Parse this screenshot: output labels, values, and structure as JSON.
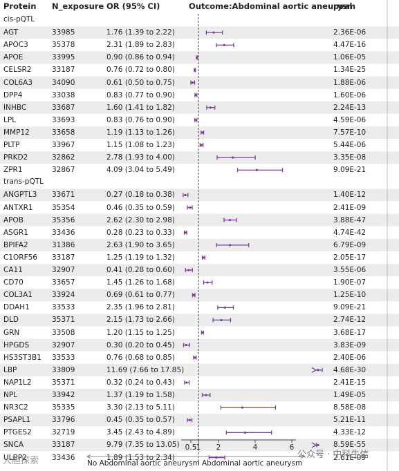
{
  "headers": {
    "protein": "Protein",
    "n_exposure": "N_exposure",
    "or_ci": "OR (95% CI)",
    "outcome": "Outcome:Abdominal aortic aneurysm",
    "pval": "pval"
  },
  "colors": {
    "marker": "#7b3f98",
    "stripe": "#ececec",
    "axis": "#444444"
  },
  "watermarks": {
    "left": "大胆探索",
    "right": "公众号 · 中科生信"
  },
  "direction_labels": {
    "left": "No Abdominal aortic aneurysm",
    "right": "Abdominal aortic aneurysm"
  },
  "chart_data": {
    "type": "forest",
    "x_ticks": [
      "0.5",
      "1",
      "2",
      "4",
      "6"
    ],
    "x_tick_values": [
      0.5,
      1,
      2,
      4,
      6
    ],
    "null_line": 1,
    "sections": [
      {
        "label": "cis-pQTL",
        "rows": [
          {
            "protein": "AGT",
            "n": "33985",
            "or_text": "1.76 (1.39 to 2.22)",
            "pval": "2.36E-06",
            "or": 1.76,
            "lo": 1.39,
            "hi": 2.22
          },
          {
            "protein": "APOC3",
            "n": "35378",
            "or_text": "2.31 (1.89 to 2.83)",
            "pval": "4.47E-16",
            "or": 2.31,
            "lo": 1.89,
            "hi": 2.83
          },
          {
            "protein": "APOE",
            "n": "33995",
            "or_text": "0.90 (0.86 to 0.94)",
            "pval": "1.06E-05",
            "or": 0.9,
            "lo": 0.86,
            "hi": 0.94
          },
          {
            "protein": "CELSR2",
            "n": "33187",
            "or_text": "0.76 (0.72 to 0.80)",
            "pval": "1.34E-25",
            "or": 0.76,
            "lo": 0.72,
            "hi": 0.8
          },
          {
            "protein": "COL6A3",
            "n": "34090",
            "or_text": "0.61 (0.50 to 0.75)",
            "pval": "1.88E-06",
            "or": 0.61,
            "lo": 0.5,
            "hi": 0.75
          },
          {
            "protein": "DPP4",
            "n": "33038",
            "or_text": "0.83 (0.77 to 0.90)",
            "pval": "1.60E-06",
            "or": 0.83,
            "lo": 0.77,
            "hi": 0.9
          },
          {
            "protein": "INHBC",
            "n": "33687",
            "or_text": "1.60 (1.41 to 1.82)",
            "pval": "2.24E-13",
            "or": 1.6,
            "lo": 1.41,
            "hi": 1.82
          },
          {
            "protein": "LPL",
            "n": "33693",
            "or_text": "0.83 (0.76 to 0.90)",
            "pval": "4.59E-06",
            "or": 0.83,
            "lo": 0.76,
            "hi": 0.9
          },
          {
            "protein": "MMP12",
            "n": "33658",
            "or_text": "1.19 (1.13 to 1.26)",
            "pval": "7.57E-10",
            "or": 1.19,
            "lo": 1.13,
            "hi": 1.26
          },
          {
            "protein": "PLTP",
            "n": "33967",
            "or_text": "1.15 (1.08 to 1.23)",
            "pval": "5.44E-06",
            "or": 1.15,
            "lo": 1.08,
            "hi": 1.23
          },
          {
            "protein": "PRKD2",
            "n": "32862",
            "or_text": "2.78 (1.93 to 4.00)",
            "pval": "3.35E-08",
            "or": 2.78,
            "lo": 1.93,
            "hi": 4.0
          },
          {
            "protein": "ZPR1",
            "n": "32867",
            "or_text": "4.09 (3.04 to 5.49)",
            "pval": "9.09E-21",
            "or": 4.09,
            "lo": 3.04,
            "hi": 5.49
          }
        ]
      },
      {
        "label": "trans-pQTL",
        "rows": [
          {
            "protein": "ANGPTL3",
            "n": "33671",
            "or_text": "0.27 (0.18 to 0.38)",
            "pval": "1.40E-12",
            "or": 0.27,
            "lo": 0.18,
            "hi": 0.38
          },
          {
            "protein": "ANTXR1",
            "n": "35354",
            "or_text": "0.46 (0.35 to 0.59)",
            "pval": "2.41E-09",
            "or": 0.46,
            "lo": 0.35,
            "hi": 0.59
          },
          {
            "protein": "APOB",
            "n": "35356",
            "or_text": "2.62 (2.30 to 2.98)",
            "pval": "3.88E-47",
            "or": 2.62,
            "lo": 2.3,
            "hi": 2.98
          },
          {
            "protein": "ASGR1",
            "n": "33436",
            "or_text": "0.28 (0.23 to 0.33)",
            "pval": "4.74E-42",
            "or": 0.28,
            "lo": 0.23,
            "hi": 0.33
          },
          {
            "protein": "BPIFA2",
            "n": "31386",
            "or_text": "2.63 (1.90 to 3.65)",
            "pval": "6.79E-09",
            "or": 2.63,
            "lo": 1.9,
            "hi": 3.65
          },
          {
            "protein": "C1ORF56",
            "n": "33187",
            "or_text": "1.25 (1.19 to 1.32)",
            "pval": "2.05E-17",
            "or": 1.25,
            "lo": 1.19,
            "hi": 1.32
          },
          {
            "protein": "CA11",
            "n": "32907",
            "or_text": "0.41 (0.28 to 0.60)",
            "pval": "3.55E-06",
            "or": 0.41,
            "lo": 0.28,
            "hi": 0.6
          },
          {
            "protein": "CD70",
            "n": "33657",
            "or_text": "1.45 (1.26 to 1.68)",
            "pval": "1.90E-07",
            "or": 1.45,
            "lo": 1.26,
            "hi": 1.68
          },
          {
            "protein": "COL3A1",
            "n": "33924",
            "or_text": "0.69 (0.61 to 0.77)",
            "pval": "1.25E-10",
            "or": 0.69,
            "lo": 0.61,
            "hi": 0.77
          },
          {
            "protein": "DDAH1",
            "n": "33533",
            "or_text": "2.35 (1.96 to 2.81)",
            "pval": "9.09E-21",
            "or": 2.35,
            "lo": 1.96,
            "hi": 2.81
          },
          {
            "protein": "DLD",
            "n": "35371",
            "or_text": "2.15 (1.73 to 2.66)",
            "pval": "2.74E-12",
            "or": 2.15,
            "lo": 1.73,
            "hi": 2.66
          },
          {
            "protein": "GRN",
            "n": "33508",
            "or_text": "1.20 (1.15 to 1.25)",
            "pval": "3.68E-17",
            "or": 1.2,
            "lo": 1.15,
            "hi": 1.25
          },
          {
            "protein": "HPGDS",
            "n": "32907",
            "or_text": "0.30 (0.20 to 0.45)",
            "pval": "3.83E-09",
            "or": 0.3,
            "lo": 0.2,
            "hi": 0.45
          },
          {
            "protein": "HS3ST3B1",
            "n": "33533",
            "or_text": "0.76 (0.68 to 0.85)",
            "pval": "2.40E-06",
            "or": 0.76,
            "lo": 0.68,
            "hi": 0.85
          },
          {
            "protein": "LBP",
            "n": "33809",
            "or_text": "11.69 (7.66 to 17.85)",
            "pval": "4.68E-30",
            "or": 11.69,
            "lo": 7.66,
            "hi": 17.85
          },
          {
            "protein": "NAP1L2",
            "n": "35371",
            "or_text": "0.32 (0.24 to 0.43)",
            "pval": "2.41E-15",
            "or": 0.32,
            "lo": 0.24,
            "hi": 0.43
          },
          {
            "protein": "NPL",
            "n": "33942",
            "or_text": "1.37 (1.19 to 1.58)",
            "pval": "1.49E-05",
            "or": 1.37,
            "lo": 1.19,
            "hi": 1.58
          },
          {
            "protein": "NR3C2",
            "n": "35335",
            "or_text": "3.30 (2.13 to 5.11)",
            "pval": "8.58E-08",
            "or": 3.3,
            "lo": 2.13,
            "hi": 5.11
          },
          {
            "protein": "PSAPL1",
            "n": "33796",
            "or_text": "0.45 (0.35 to 0.57)",
            "pval": "5.21E-11",
            "or": 0.45,
            "lo": 0.35,
            "hi": 0.57
          },
          {
            "protein": "PTGES2",
            "n": "32719",
            "or_text": "3.45 (2.43 to 4.89)",
            "pval": "4.33E-12",
            "or": 3.45,
            "lo": 2.43,
            "hi": 4.89
          },
          {
            "protein": "SNCA",
            "n": "33187",
            "or_text": "9.79 (7.35 to 13.05)",
            "pval": "8.59E-55",
            "or": 9.79,
            "lo": 7.35,
            "hi": 13.05
          },
          {
            "protein": "ULBP2",
            "n": "33436",
            "or_text": "1.89 (1.53 to 2.34)",
            "pval": "2.61E-09",
            "or": 1.89,
            "lo": 1.53,
            "hi": 2.34
          }
        ]
      }
    ]
  }
}
